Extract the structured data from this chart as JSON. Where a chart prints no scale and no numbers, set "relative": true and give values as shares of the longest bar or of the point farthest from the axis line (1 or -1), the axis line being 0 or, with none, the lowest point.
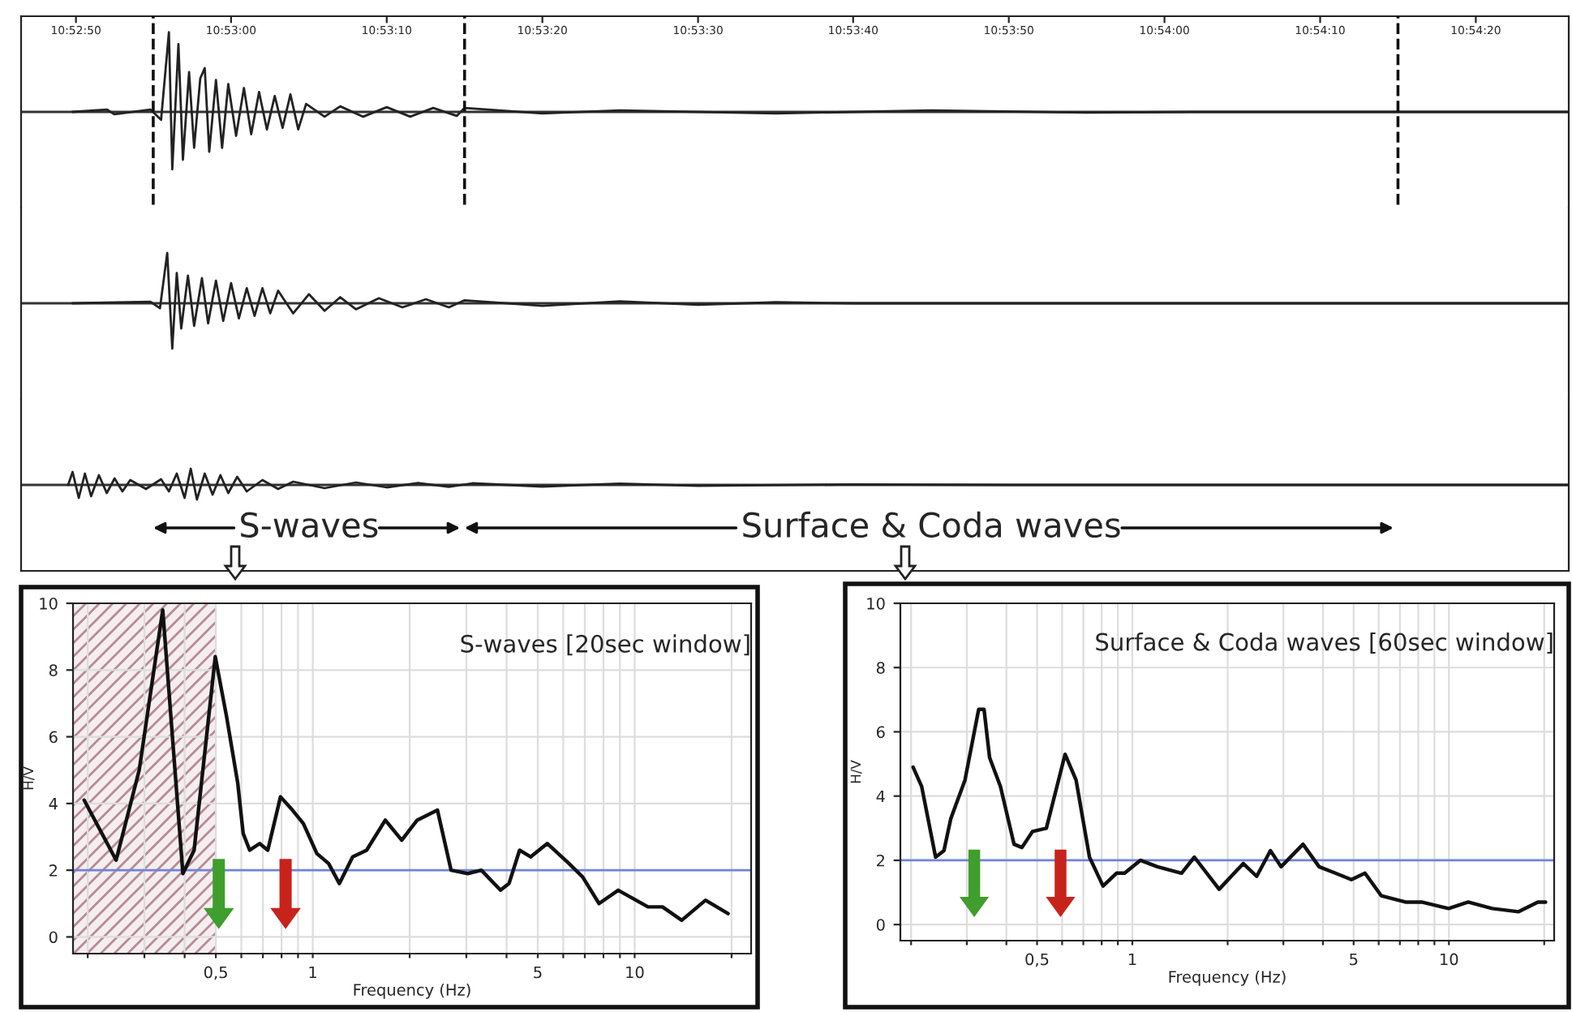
{
  "chart_data": [
    {
      "type": "line",
      "relative": true,
      "color": "#222222",
      "tick_labels": "x",
      "xlim": [
        10.87958,
        10.90722
      ],
      "xticks": [
        {
          "value": 10.88056,
          "label": "10:52:50"
        },
        {
          "value": 10.88333,
          "label": "10:53:00"
        },
        {
          "value": 10.88611,
          "label": "10:53:10"
        },
        {
          "value": 10.88889,
          "label": "10:53:20"
        },
        {
          "value": 10.89167,
          "label": "10:53:30"
        },
        {
          "value": 10.89444,
          "label": "10:53:40"
        },
        {
          "value": 10.89722,
          "label": "10:53:50"
        },
        {
          "value": 10.9,
          "label": "10:54:00"
        },
        {
          "value": 10.90278,
          "label": "10:54:10"
        },
        {
          "value": 10.90556,
          "label": "10:54:20"
        }
      ],
      "x": [
        10.8805,
        10.88111,
        10.88125,
        10.88189,
        10.88208,
        10.88222,
        10.88228,
        10.88239,
        10.88247,
        10.88258,
        10.88267,
        10.88278,
        10.88286,
        10.88294,
        10.88306,
        10.88317,
        10.88328,
        10.88342,
        10.88356,
        10.88369,
        10.88383,
        10.88397,
        10.88411,
        10.88425,
        10.88439,
        10.88453,
        10.88467,
        10.885,
        10.88528,
        10.88569,
        10.88611,
        10.88653,
        10.88694,
        10.88736,
        10.8875,
        10.88889,
        10.89028,
        10.89306,
        10.89583,
        10.89861,
        10.90056,
        10.90722
      ],
      "values": [
        0,
        0.03,
        -0.03,
        0.03,
        -0.1,
        1.0,
        -0.72,
        0.85,
        -0.6,
        0.5,
        -0.45,
        0.42,
        0.55,
        -0.5,
        0.4,
        -0.45,
        0.35,
        -0.3,
        0.3,
        -0.28,
        0.25,
        -0.22,
        0.2,
        -0.2,
        0.22,
        -0.22,
        0.1,
        -0.06,
        0.07,
        -0.06,
        0.06,
        -0.06,
        0.05,
        -0.05,
        0.05,
        -0.02,
        0.02,
        -0.02,
        0.02,
        -0.01,
        0,
        0
      ],
      "ref_lines": [
        {
          "axis": "y",
          "value": 0
        },
        {
          "axis": "x",
          "value": 10.88194,
          "line_style": "dashed"
        },
        {
          "axis": "x",
          "value": 10.8875,
          "line_style": "dashed"
        },
        {
          "axis": "x",
          "value": 10.90417,
          "line_style": "dashed"
        }
      ]
    },
    {
      "type": "line",
      "relative": true,
      "color": "#222222",
      "tick_labels": false,
      "xlim": [
        10.87958,
        10.90722
      ],
      "x": [
        10.8805,
        10.88189,
        10.88206,
        10.88219,
        10.88228,
        10.88236,
        10.88244,
        10.88256,
        10.88267,
        10.88281,
        10.88292,
        10.88306,
        10.88319,
        10.88333,
        10.88347,
        10.88361,
        10.88375,
        10.88389,
        10.88403,
        10.88417,
        10.88444,
        10.88472,
        10.885,
        10.88528,
        10.88556,
        10.88597,
        10.88639,
        10.88681,
        10.88722,
        10.8875,
        10.88889,
        10.89028,
        10.89167,
        10.89306,
        10.89444,
        10.90722
      ],
      "values": [
        0,
        0.03,
        -0.1,
        1.0,
        -0.9,
        0.6,
        -0.5,
        0.55,
        -0.45,
        0.5,
        -0.4,
        0.45,
        -0.35,
        0.4,
        -0.3,
        0.3,
        -0.25,
        0.3,
        -0.2,
        0.25,
        -0.2,
        0.18,
        -0.15,
        0.12,
        -0.12,
        0.1,
        -0.08,
        0.08,
        -0.08,
        0.06,
        -0.05,
        0.04,
        -0.03,
        0.02,
        0,
        0
      ],
      "ref_lines": [
        {
          "axis": "y",
          "value": 0
        }
      ]
    },
    {
      "type": "line",
      "relative": true,
      "color": "#222222",
      "tick_labels": false,
      "xlim": [
        10.87958,
        10.90722
      ],
      "x": [
        10.88042,
        10.8805,
        10.88061,
        10.88072,
        10.88083,
        10.88097,
        10.88111,
        10.88125,
        10.88139,
        10.88153,
        10.88181,
        10.88208,
        10.88222,
        10.88236,
        10.8825,
        10.88261,
        10.88272,
        10.88286,
        10.883,
        10.88314,
        10.88328,
        10.88344,
        10.88361,
        10.88389,
        10.88417,
        10.88444,
        10.885,
        10.88556,
        10.88611,
        10.88667,
        10.88722,
        10.88764,
        10.88889,
        10.89028,
        10.89167,
        10.89444,
        10.89722,
        10.90722
      ],
      "values": [
        0,
        0.8,
        -0.8,
        0.7,
        -0.7,
        0.6,
        -0.5,
        0.4,
        -0.4,
        0.3,
        -0.25,
        0.35,
        -0.4,
        0.7,
        -0.8,
        1.0,
        -0.9,
        0.7,
        -0.6,
        0.6,
        -0.5,
        0.5,
        -0.4,
        0.3,
        -0.25,
        0.2,
        -0.2,
        0.15,
        -0.15,
        0.12,
        -0.12,
        0.1,
        -0.1,
        0.08,
        -0.06,
        0.03,
        0,
        0
      ],
      "ref_lines": [
        {
          "axis": "y",
          "value": 0
        }
      ],
      "annotations": [
        "S-waves",
        "Surface & Coda waves"
      ]
    },
    {
      "type": "line",
      "title": "S-waves [20sec window]",
      "xlabel": "Frequency (Hz)",
      "ylabel": "H/V",
      "log": "x",
      "grid": true,
      "color": "#111111",
      "xlim": [
        0.18,
        23
      ],
      "ylim": [
        -0.5,
        10
      ],
      "xticks": [
        {
          "value": 0.2,
          "label": null
        },
        {
          "value": 0.3,
          "label": null
        },
        {
          "value": 0.4,
          "label": null
        },
        {
          "value": 0.5,
          "label": "0,5"
        },
        {
          "value": 0.6,
          "label": null
        },
        {
          "value": 0.7,
          "label": null
        },
        {
          "value": 0.8,
          "label": null
        },
        {
          "value": 0.9,
          "label": null
        },
        1,
        {
          "value": 2,
          "label": null
        },
        {
          "value": 3,
          "label": null
        },
        {
          "value": 4,
          "label": null
        },
        5,
        {
          "value": 6,
          "label": null
        },
        {
          "value": 7,
          "label": null
        },
        {
          "value": 8,
          "label": null
        },
        {
          "value": 9,
          "label": null
        },
        10,
        {
          "value": 20,
          "label": null
        }
      ],
      "yticks": [
        0,
        2,
        4,
        6,
        8,
        10
      ],
      "x": [
        0.195,
        0.245,
        0.289,
        0.342,
        0.395,
        0.428,
        0.498,
        0.54,
        0.585,
        0.608,
        0.637,
        0.684,
        0.725,
        0.794,
        0.865,
        0.935,
        1.03,
        1.12,
        1.21,
        1.33,
        1.47,
        1.68,
        1.89,
        2.11,
        2.44,
        2.69,
        3.03,
        3.34,
        3.83,
        4.07,
        4.39,
        4.75,
        5.35,
        6.25,
        6.89,
        7.75,
        8.89,
        11.0,
        12.2,
        14.0,
        16.6,
        19.5
      ],
      "values": [
        4.1,
        2.3,
        5.0,
        9.8,
        1.9,
        2.6,
        8.4,
        6.6,
        4.6,
        3.1,
        2.6,
        2.8,
        2.6,
        4.2,
        3.8,
        3.4,
        2.5,
        2.2,
        1.6,
        2.4,
        2.6,
        3.5,
        2.9,
        3.5,
        3.8,
        2.0,
        1.9,
        2.0,
        1.4,
        1.6,
        2.6,
        2.4,
        2.8,
        2.2,
        1.8,
        1.0,
        1.4,
        0.9,
        0.9,
        0.5,
        1.1,
        0.7
      ],
      "ref_lines": [
        {
          "axis": "y",
          "value": 2,
          "color": "#6f83d8"
        }
      ],
      "bands": [
        {
          "axis": "x",
          "from": 0.18,
          "to": 0.5,
          "color": "#b98a95"
        }
      ]
    },
    {
      "type": "line",
      "title": "Surface & Coda waves [60sec window]",
      "xlabel": "Frequency (Hz)",
      "ylabel": "H/V",
      "log": "x",
      "grid": true,
      "color": "#111111",
      "xlim": [
        0.185,
        21.5
      ],
      "ylim": [
        -0.5,
        10
      ],
      "xticks": [
        {
          "value": 0.2,
          "label": null
        },
        {
          "value": 0.3,
          "label": null
        },
        {
          "value": 0.4,
          "label": null
        },
        {
          "value": 0.5,
          "label": "0,5"
        },
        {
          "value": 0.6,
          "label": null
        },
        {
          "value": 0.7,
          "label": null
        },
        {
          "value": 0.8,
          "label": null
        },
        {
          "value": 0.9,
          "label": null
        },
        1,
        {
          "value": 2,
          "label": null
        },
        {
          "value": 3,
          "label": null
        },
        {
          "value": 4,
          "label": null
        },
        5,
        {
          "value": 6,
          "label": null
        },
        {
          "value": 7,
          "label": null
        },
        {
          "value": 8,
          "label": null
        },
        {
          "value": 9,
          "label": null
        },
        10,
        {
          "value": 20,
          "label": null
        }
      ],
      "yticks": [
        0,
        2,
        4,
        6,
        8,
        10
      ],
      "x": [
        0.203,
        0.216,
        0.239,
        0.254,
        0.267,
        0.296,
        0.327,
        0.34,
        0.354,
        0.383,
        0.423,
        0.448,
        0.484,
        0.535,
        0.613,
        0.664,
        0.732,
        0.808,
        0.891,
        0.945,
        1.06,
        1.2,
        1.43,
        1.57,
        1.88,
        2.24,
        2.47,
        2.73,
        2.95,
        3.46,
        3.89,
        4.38,
        4.92,
        5.43,
        6.11,
        7.29,
        8.2,
        9.98,
        11.5,
        13.7,
        16.6,
        19.1,
        20.2
      ],
      "values": [
        4.9,
        4.3,
        2.1,
        2.3,
        3.3,
        4.5,
        6.7,
        6.7,
        5.2,
        4.3,
        2.5,
        2.4,
        2.9,
        3.0,
        5.3,
        4.5,
        2.1,
        1.2,
        1.6,
        1.6,
        2.0,
        1.8,
        1.6,
        2.1,
        1.1,
        1.9,
        1.5,
        2.3,
        1.8,
        2.5,
        1.8,
        1.6,
        1.4,
        1.6,
        0.9,
        0.7,
        0.7,
        0.5,
        0.7,
        0.5,
        0.4,
        0.7,
        0.7
      ],
      "ref_lines": [
        {
          "axis": "y",
          "value": 2,
          "color": "#6f83d8"
        }
      ]
    }
  ]
}
